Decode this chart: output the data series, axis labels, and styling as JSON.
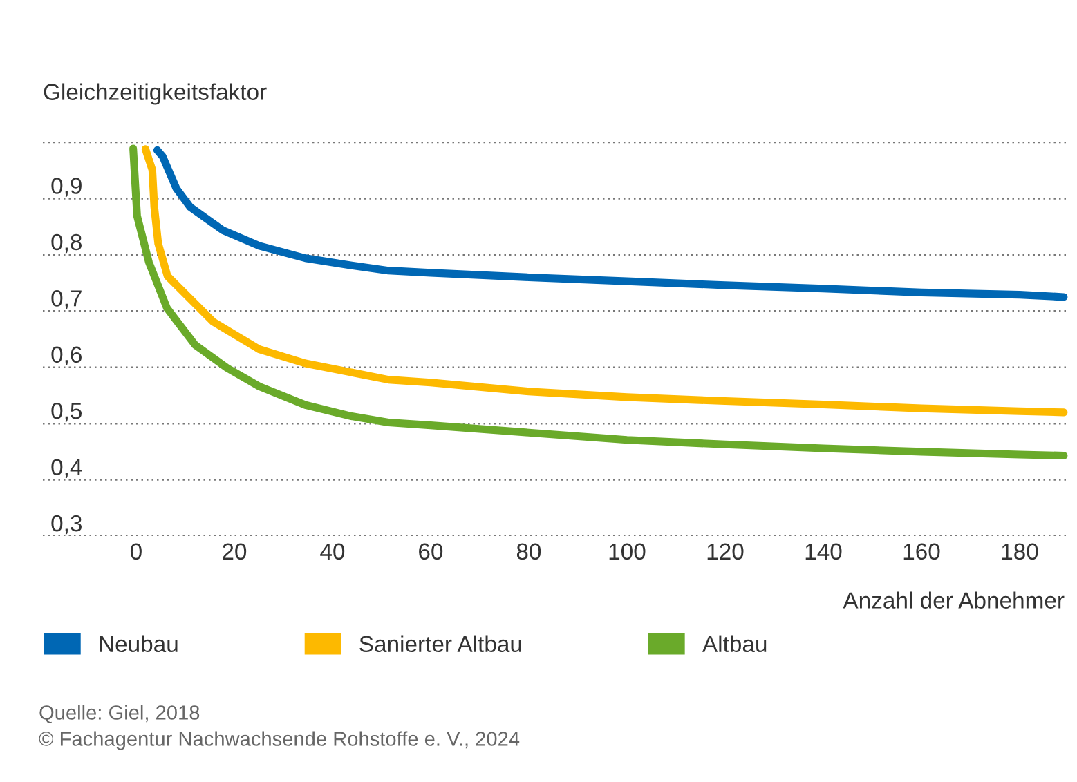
{
  "chart_data": {
    "type": "line",
    "ylabel": "Gleichzeitigkeitsfaktor",
    "xlabel": "Anzahl der Abnehmer",
    "xlim": [
      -19,
      190
    ],
    "ylim": [
      0.3,
      1.0
    ],
    "xticks": [
      0,
      20,
      40,
      60,
      80,
      100,
      120,
      140,
      160,
      180
    ],
    "yticks": [
      {
        "value": 0.3,
        "label": "0,3"
      },
      {
        "value": 0.4,
        "label": "0,4"
      },
      {
        "value": 0.5,
        "label": "0,5"
      },
      {
        "value": 0.6,
        "label": "0,6"
      },
      {
        "value": 0.7,
        "label": "0,7"
      },
      {
        "value": 0.8,
        "label": "0,8"
      },
      {
        "value": 0.9,
        "label": "0,9"
      },
      {
        "value": 1.0,
        "label": null
      }
    ],
    "grid": "y",
    "legend": "bottom",
    "marker": "none",
    "line_style": "solid",
    "series": [
      {
        "name": "Neubau",
        "color": "#0067b4",
        "x": [
          4.3,
          5.4,
          8.2,
          11,
          17.6,
          25.1,
          34.5,
          43.9,
          51.4,
          60,
          80,
          100,
          120,
          140,
          160,
          180,
          189
        ],
        "values": [
          0.986,
          0.975,
          0.918,
          0.885,
          0.844,
          0.816,
          0.794,
          0.781,
          0.772,
          0.768,
          0.76,
          0.753,
          0.746,
          0.74,
          0.733,
          0.729,
          0.725
        ]
      },
      {
        "name": "Sanierter Altbau",
        "color": "#fdb900",
        "x": [
          1.9,
          3.3,
          3.7,
          4.5,
          6.4,
          15.7,
          25.1,
          34.5,
          51.4,
          60,
          80,
          100,
          120,
          140,
          160,
          180,
          189
        ],
        "values": [
          0.988,
          0.951,
          0.885,
          0.82,
          0.762,
          0.681,
          0.632,
          0.607,
          0.578,
          0.573,
          0.557,
          0.547,
          0.54,
          0.534,
          0.527,
          0.522,
          0.52
        ]
      },
      {
        "name": "Altbau",
        "color": "#6aaa2a",
        "x": [
          -0.6,
          0.2,
          2.6,
          6.3,
          12,
          18.5,
          25.1,
          34.5,
          43.9,
          51.4,
          60,
          80,
          100,
          120,
          140,
          160,
          180,
          189
        ],
        "values": [
          0.989,
          0.869,
          0.787,
          0.705,
          0.64,
          0.599,
          0.566,
          0.533,
          0.513,
          0.502,
          0.497,
          0.484,
          0.471,
          0.463,
          0.456,
          0.45,
          0.445,
          0.443
        ]
      }
    ],
    "annotations": [
      "Quelle: Giel, 2018",
      "© Fachagentur Nachwachsende Rohstoffe e. V., 2024"
    ]
  }
}
